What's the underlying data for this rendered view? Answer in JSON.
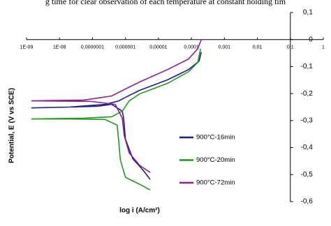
{
  "caption_top": "g time for clear observation of each temperature at constant holding tim",
  "chart_data": {
    "type": "line",
    "x_log": true,
    "xlabel": "log i (A/cm²)",
    "ylabel": "Potential, E (V vs SCE)",
    "xlim": [
      1e-09,
      1
    ],
    "ylim": [
      -0.6,
      0.1
    ],
    "xticks": [
      {
        "value": 1e-09,
        "label": "1E-09"
      },
      {
        "value": 1e-08,
        "label": "1E-08"
      },
      {
        "value": 1e-07,
        "label": "0,0000001"
      },
      {
        "value": 1e-06,
        "label": "0,000001"
      },
      {
        "value": 1e-05,
        "label": "0,00001"
      },
      {
        "value": 0.0001,
        "label": "0,0001"
      },
      {
        "value": 0.001,
        "label": "0,001"
      },
      {
        "value": 0.01,
        "label": "0,01"
      },
      {
        "value": 0.1,
        "label": "0,1"
      },
      1
    ],
    "yticks": [
      {
        "value": 0.1,
        "label": "0,1"
      },
      0,
      {
        "value": -0.1,
        "label": "-0,1"
      },
      {
        "value": -0.2,
        "label": "-0,2"
      },
      {
        "value": -0.3,
        "label": "-0,3"
      },
      {
        "value": -0.4,
        "label": "-0,4"
      },
      {
        "value": -0.5,
        "label": "-0,5"
      },
      {
        "value": -0.6,
        "label": "-0,6"
      }
    ],
    "y_axis_at": 0.1,
    "x_axis_at": 0,
    "legend": "center-right",
    "series": [
      {
        "name": "900°C-16min",
        "color": "#1c1c8c",
        "x": [
          5.6e-06,
          3.5e-06,
          1.66e-06,
          1e-06,
          8.8e-07,
          8e-07,
          3.8e-07,
          1.45e-07,
          2e-08,
          1.4e-09,
          2e-08,
          2.4e-07,
          6.3e-07,
          1e-06,
          2.7e-06,
          1.9e-05,
          8.2e-05,
          0.00017,
          0.0002
        ],
        "values": [
          -0.518,
          -0.485,
          -0.441,
          -0.369,
          -0.291,
          -0.265,
          -0.24,
          -0.247,
          -0.25,
          -0.253,
          -0.25,
          -0.24,
          -0.227,
          -0.214,
          -0.188,
          -0.149,
          -0.111,
          -0.08,
          -0.046
        ]
      },
      {
        "name": "900°C-20min",
        "color": "#1f9a1f",
        "x": [
          5.6e-06,
          2.7e-06,
          1e-06,
          7e-07,
          6.3e-07,
          5.6e-07,
          2.4e-07,
          2e-08,
          1.4e-09,
          5.5e-08,
          3.8e-07,
          8e-07,
          1.3e-06,
          2.7e-06,
          1.9e-05,
          8.2e-05,
          0.000155,
          0.00019
        ],
        "values": [
          -0.557,
          -0.536,
          -0.51,
          -0.446,
          -0.381,
          -0.317,
          -0.296,
          -0.294,
          -0.294,
          -0.291,
          -0.286,
          -0.265,
          -0.227,
          -0.201,
          -0.162,
          -0.119,
          -0.085,
          -0.034
        ]
      },
      {
        "name": "900°C-72min",
        "color": "#8b1f8b",
        "x": [
          5.6e-06,
          2.7e-06,
          1.3e-06,
          9.2e-07,
          8e-07,
          4.9e-07,
          8.9e-08,
          1.4e-09,
          5.5e-08,
          3.8e-07,
          1e-06,
          2.7e-06,
          1.9e-05,
          8.2e-05,
          0.000155,
          0.0002
        ],
        "values": [
          -0.492,
          -0.466,
          -0.42,
          -0.356,
          -0.291,
          -0.24,
          -0.229,
          -0.227,
          -0.224,
          -0.209,
          -0.183,
          -0.157,
          -0.111,
          -0.072,
          -0.034,
          0
        ]
      }
    ]
  }
}
